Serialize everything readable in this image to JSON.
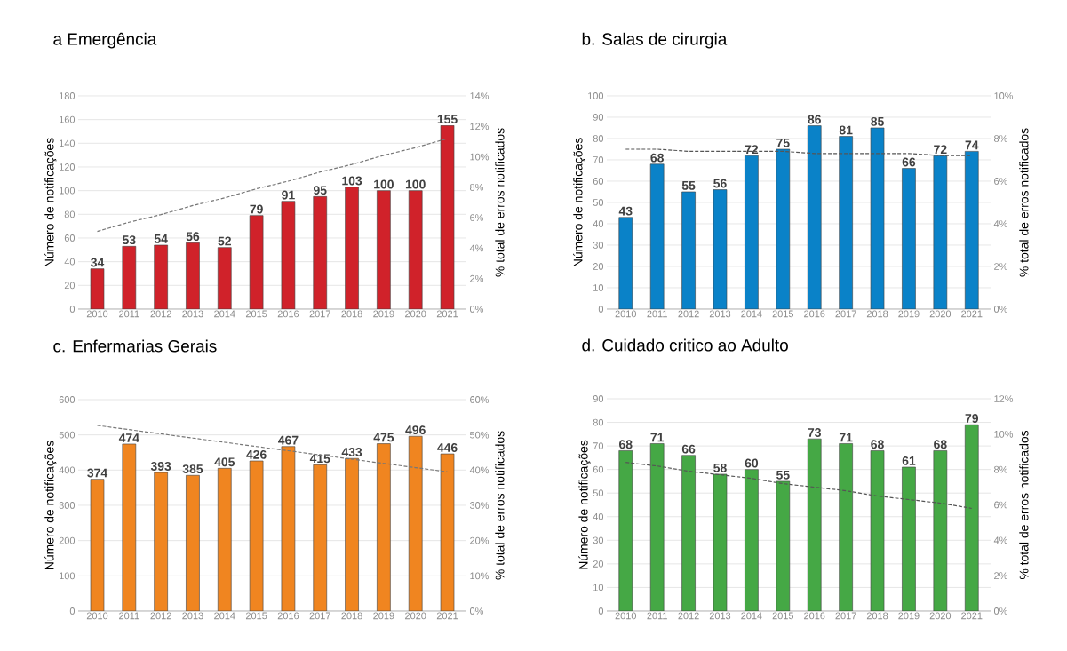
{
  "chart_data": [
    {
      "type": "bar",
      "title": "a Emergência",
      "ylabel": "Número de notificações",
      "y2label": "% total de erros notificados",
      "categories": [
        "2010",
        "2011",
        "2012",
        "2013",
        "2014",
        "2015",
        "2016",
        "2017",
        "2018",
        "2019",
        "2020",
        "2021"
      ],
      "ylim": [
        0,
        180
      ],
      "yticks": [
        0,
        20,
        40,
        60,
        80,
        100,
        120,
        140,
        160,
        180
      ],
      "y2lim": [
        0,
        14
      ],
      "y2ticks": [
        {
          "value": 0,
          "label": "0%"
        },
        {
          "value": 2,
          "label": "2%"
        },
        {
          "value": 4,
          "label": "4%"
        },
        {
          "value": 6,
          "label": "6%"
        },
        {
          "value": 8,
          "label": "8%"
        },
        {
          "value": 10,
          "label": "10%"
        },
        {
          "value": 12,
          "label": "12%"
        },
        {
          "value": 14,
          "label": "14%"
        }
      ],
      "grid": "y",
      "series": [
        {
          "color": "#d0222a",
          "values": [
            34,
            53,
            54,
            56,
            52,
            79,
            91,
            95,
            103,
            100,
            100,
            155
          ],
          "value_labels": [
            "34",
            "53",
            "54",
            "56",
            "52",
            "79",
            "91",
            "95",
            "103",
            "100",
            "100",
            "155"
          ]
        },
        {
          "type": "line",
          "axis": "y2",
          "color": "#777777",
          "line_style": "dashed",
          "marker": "none",
          "values": [
            5.1,
            5.7,
            6.2,
            6.8,
            7.3,
            7.9,
            8.4,
            9.0,
            9.5,
            10.1,
            10.6,
            11.2
          ]
        }
      ]
    },
    {
      "type": "bar",
      "title": "b. Salas de cirurgia",
      "ylabel": "Número de notificações",
      "y2label": "% total de erros notificados",
      "categories": [
        "2010",
        "2011",
        "2012",
        "2013",
        "2014",
        "2015",
        "2016",
        "2017",
        "2018",
        "2019",
        "2020",
        "2021"
      ],
      "ylim": [
        0,
        100
      ],
      "yticks": [
        0,
        10,
        20,
        30,
        40,
        50,
        60,
        70,
        80,
        90,
        100
      ],
      "y2lim": [
        0,
        10
      ],
      "y2ticks": [
        {
          "value": 0,
          "label": "0%"
        },
        {
          "value": 2,
          "label": "2%"
        },
        {
          "value": 4,
          "label": "4%"
        },
        {
          "value": 6,
          "label": "6%"
        },
        {
          "value": 8,
          "label": "8%"
        },
        {
          "value": 10,
          "label": "10%"
        }
      ],
      "grid": "y",
      "series": [
        {
          "color": "#0a82c8",
          "values": [
            43,
            68,
            55,
            56,
            72,
            75,
            86,
            81,
            85,
            66,
            72,
            74
          ],
          "value_labels": [
            "43",
            "68",
            "55",
            "56",
            "72",
            "75",
            "86",
            "81",
            "85",
            "66",
            "72",
            "74"
          ]
        },
        {
          "type": "line",
          "axis": "y2",
          "color": "#555555",
          "line_style": "dashed",
          "marker": "none",
          "values": [
            7.5,
            7.5,
            7.4,
            7.4,
            7.4,
            7.4,
            7.3,
            7.3,
            7.3,
            7.3,
            7.2,
            7.2
          ]
        }
      ]
    },
    {
      "type": "bar",
      "title": "c. Enfermarias  Gerais",
      "ylabel": "Número de notificações",
      "y2label": "% total de erros notificados",
      "categories": [
        "2010",
        "2011",
        "2012",
        "2013",
        "2014",
        "2015",
        "2016",
        "2017",
        "2018",
        "2019",
        "2020",
        "2021"
      ],
      "ylim": [
        0,
        600
      ],
      "yticks": [
        0,
        100,
        200,
        300,
        400,
        500,
        600
      ],
      "y2lim": [
        0,
        60
      ],
      "y2ticks": [
        {
          "value": 0,
          "label": "0%"
        },
        {
          "value": 10,
          "label": "10%"
        },
        {
          "value": 20,
          "label": "20%"
        },
        {
          "value": 30,
          "label": "30%"
        },
        {
          "value": 40,
          "label": "40%"
        },
        {
          "value": 50,
          "label": "50%"
        },
        {
          "value": 60,
          "label": "60%"
        }
      ],
      "grid": "y",
      "series": [
        {
          "color": "#f08520",
          "values": [
            374,
            474,
            393,
            385,
            405,
            426,
            467,
            415,
            433,
            475,
            496,
            446
          ],
          "value_labels": [
            "374",
            "474",
            "393",
            "385",
            "405",
            "426",
            "467",
            "415",
            "433",
            "475",
            "496",
            "446"
          ]
        },
        {
          "type": "line",
          "axis": "y2",
          "color": "#777777",
          "line_style": "dashed",
          "marker": "none",
          "values": [
            52.7,
            51.5,
            50.3,
            49.1,
            47.9,
            46.7,
            45.5,
            44.3,
            43.1,
            41.9,
            40.7,
            39.5
          ]
        }
      ]
    },
    {
      "type": "bar",
      "title": "d. Cuidado critico ao Adulto",
      "ylabel": "Número de notificações",
      "y2label": "% total de erros notificados",
      "categories": [
        "2010",
        "2011",
        "2012",
        "2013",
        "2014",
        "2015",
        "2016",
        "2017",
        "2018",
        "2019",
        "2020",
        "2021"
      ],
      "ylim": [
        0,
        90
      ],
      "yticks": [
        0,
        10,
        20,
        30,
        40,
        50,
        60,
        70,
        80,
        90
      ],
      "y2lim": [
        0,
        12
      ],
      "y2ticks": [
        {
          "value": 0,
          "label": "0%"
        },
        {
          "value": 2,
          "label": "2%"
        },
        {
          "value": 4,
          "label": "4%"
        },
        {
          "value": 6,
          "label": "6%"
        },
        {
          "value": 8,
          "label": "8%"
        },
        {
          "value": 10,
          "label": "10%"
        },
        {
          "value": 12,
          "label": "12%"
        }
      ],
      "grid": "y",
      "series": [
        {
          "color": "#45a845",
          "values": [
            68,
            71,
            66,
            58,
            60,
            55,
            73,
            71,
            68,
            61,
            68,
            79
          ],
          "value_labels": [
            "68",
            "71",
            "66",
            "58",
            "60",
            "55",
            "73",
            "71",
            "68",
            "61",
            "68",
            "79"
          ]
        },
        {
          "type": "line",
          "axis": "y2",
          "color": "#555555",
          "line_style": "dashed",
          "marker": "none",
          "values": [
            8.4,
            8.2,
            7.9,
            7.7,
            7.5,
            7.2,
            7.0,
            6.8,
            6.5,
            6.3,
            6.1,
            5.8
          ]
        }
      ]
    }
  ]
}
